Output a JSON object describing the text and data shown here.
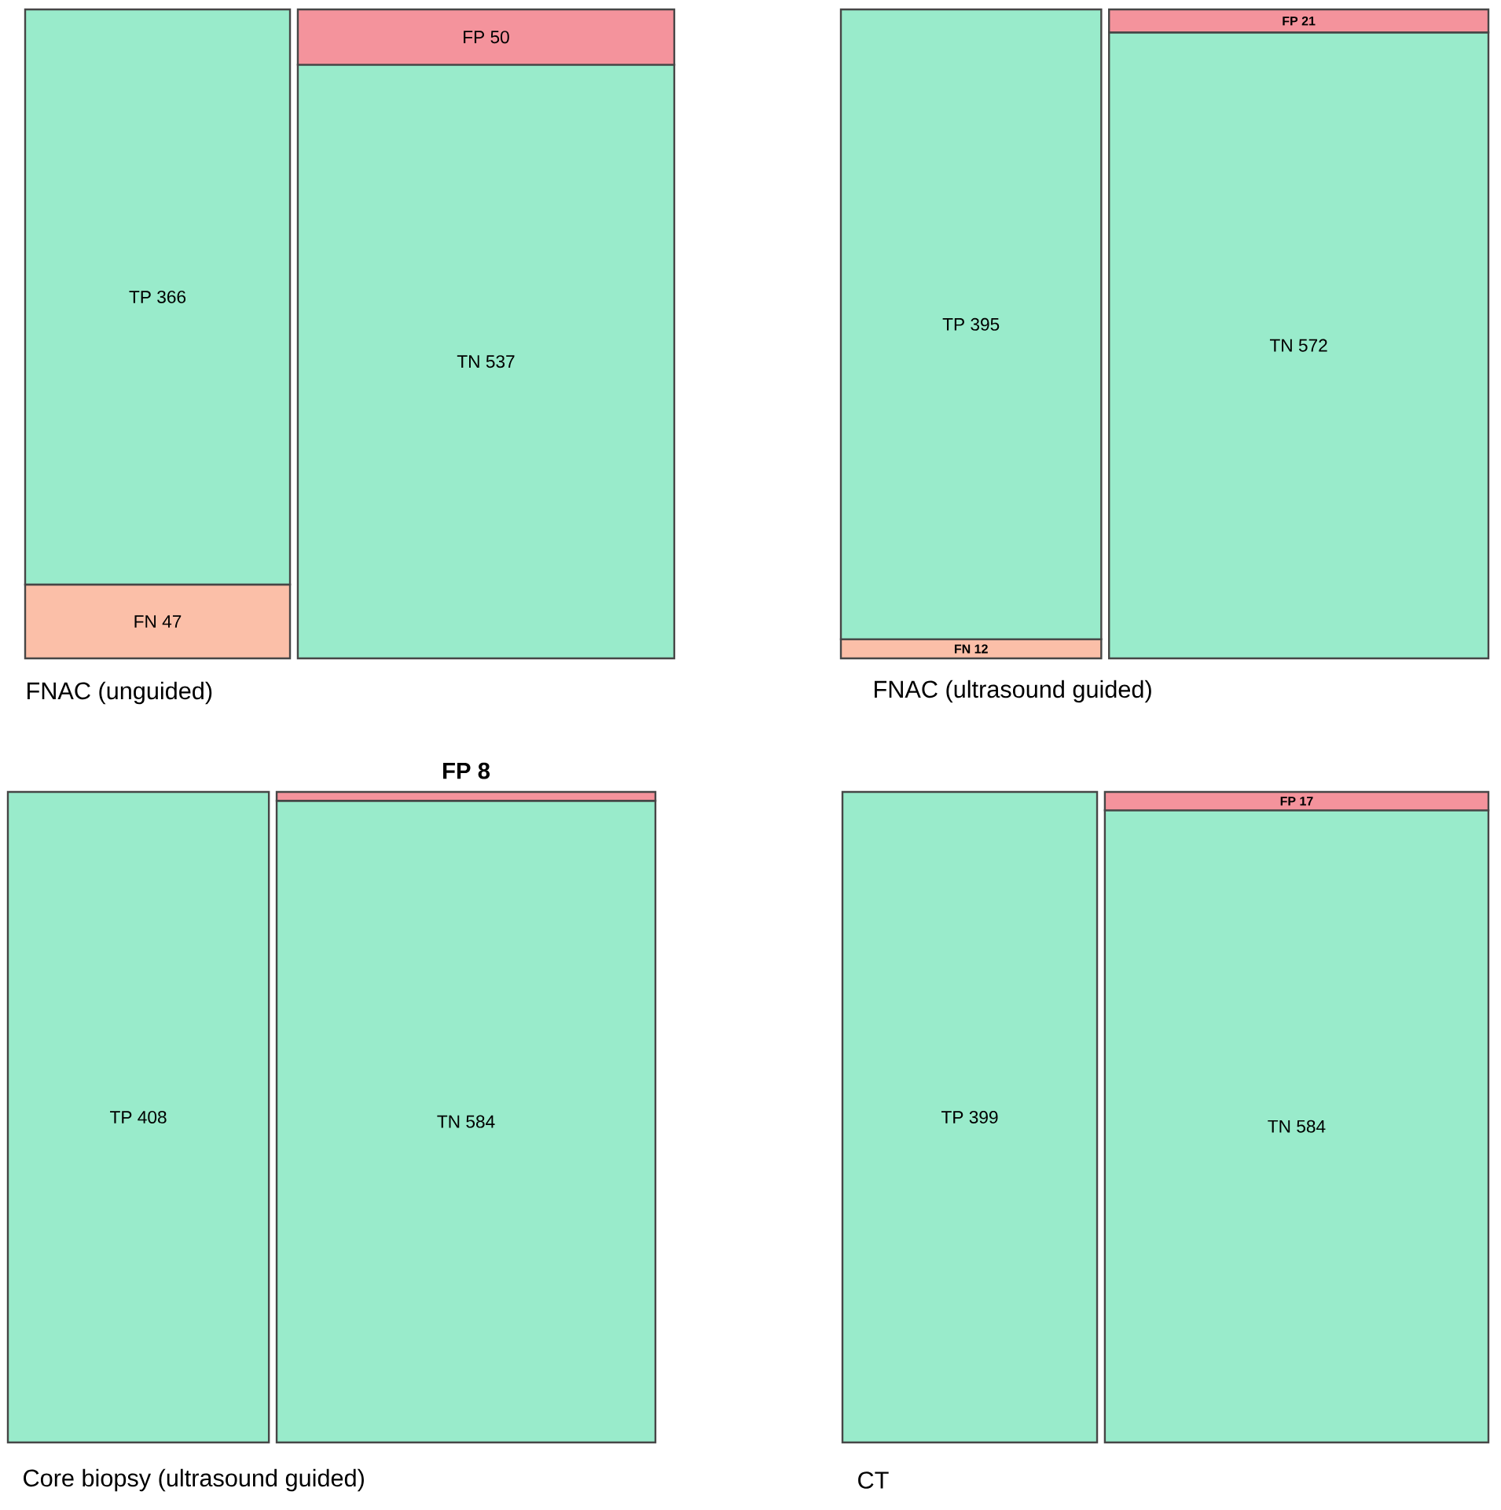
{
  "chart_data": [
    {
      "type": "other",
      "annotations": [
        "FNAC (unguided)"
      ],
      "data_labels": true,
      "categories": [
        "FN",
        "TP",
        "TN",
        "FP"
      ],
      "values": [
        47,
        366,
        537,
        50
      ],
      "colors": [
        "#fbbfa8",
        "#99ebcb",
        "#99ebcb",
        "#f4939c"
      ]
    },
    {
      "type": "other",
      "annotations": [
        "FNAC (ultrasound guided)"
      ],
      "data_labels": true,
      "categories": [
        "FN",
        "TP",
        "TN",
        "FP"
      ],
      "values": [
        12,
        395,
        572,
        21
      ],
      "colors": [
        "#fbbfa8",
        "#99ebcb",
        "#99ebcb",
        "#f4939c"
      ]
    },
    {
      "type": "other",
      "annotations": [
        "Core biopsy (ultrasound guided)"
      ],
      "data_labels": true,
      "categories": [
        null,
        "TP",
        "TN",
        "FP"
      ],
      "values": [
        null,
        408,
        584,
        8
      ],
      "colors": [
        "#fbbfa8",
        "#99ebcb",
        "#99ebcb",
        "#f4939c"
      ]
    },
    {
      "type": "other",
      "annotations": [
        "CT"
      ],
      "data_labels": true,
      "categories": [
        null,
        "TP",
        "TN",
        "FP"
      ],
      "values": [
        null,
        399,
        584,
        17
      ],
      "colors": [
        "#fbbfa8",
        "#99ebcb",
        "#99ebcb",
        "#f4939c"
      ]
    }
  ]
}
